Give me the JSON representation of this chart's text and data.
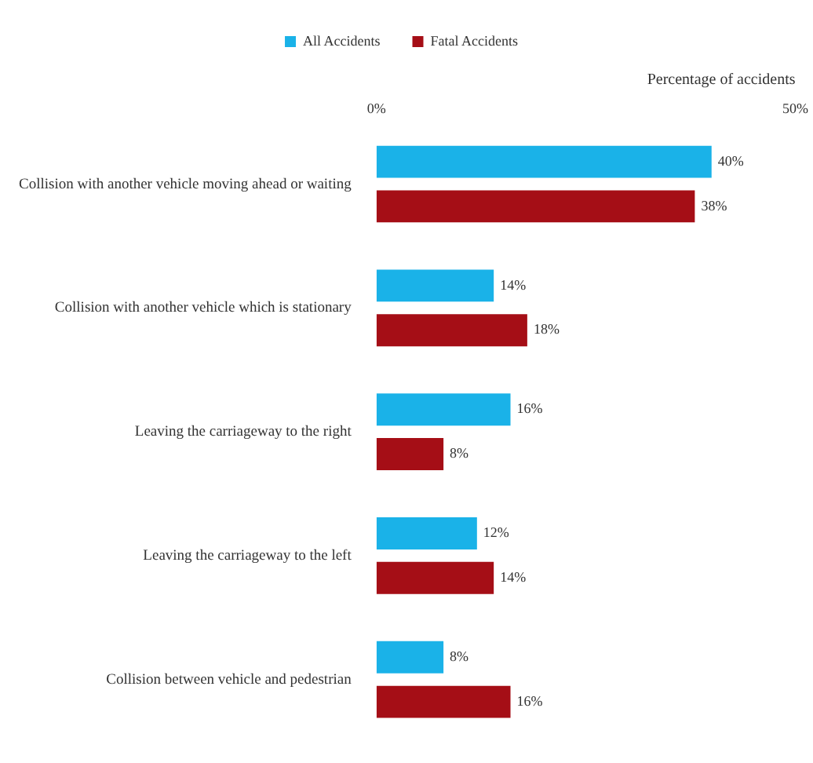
{
  "chart_data": {
    "type": "bar",
    "orientation": "horizontal",
    "xlabel": "Percentage of accidents",
    "categories": [
      "Collision with another vehicle moving ahead or waiting",
      "Collision with another vehicle which is stationary",
      "Leaving the carriageway to the right",
      "Leaving the carriageway to the left",
      "Collision between vehicle and pedestrian"
    ],
    "series": [
      {
        "name": "All Accidents",
        "color": "#1ab2e8",
        "values": [
          40,
          14,
          16,
          12,
          8
        ],
        "value_labels": [
          "40%",
          "14%",
          "16%",
          "12%",
          "8%"
        ]
      },
      {
        "name": "Fatal Accidents",
        "color": "#a50e16",
        "values": [
          38,
          18,
          8,
          14,
          16
        ],
        "value_labels": [
          "38%",
          "18%",
          "8%",
          "14%",
          "16%"
        ]
      }
    ],
    "xlim": [
      0,
      50
    ],
    "xticks": [
      {
        "value": 0,
        "label": "0%"
      },
      {
        "value": 50,
        "label": "50%"
      }
    ],
    "grid": false,
    "legend": "top"
  }
}
